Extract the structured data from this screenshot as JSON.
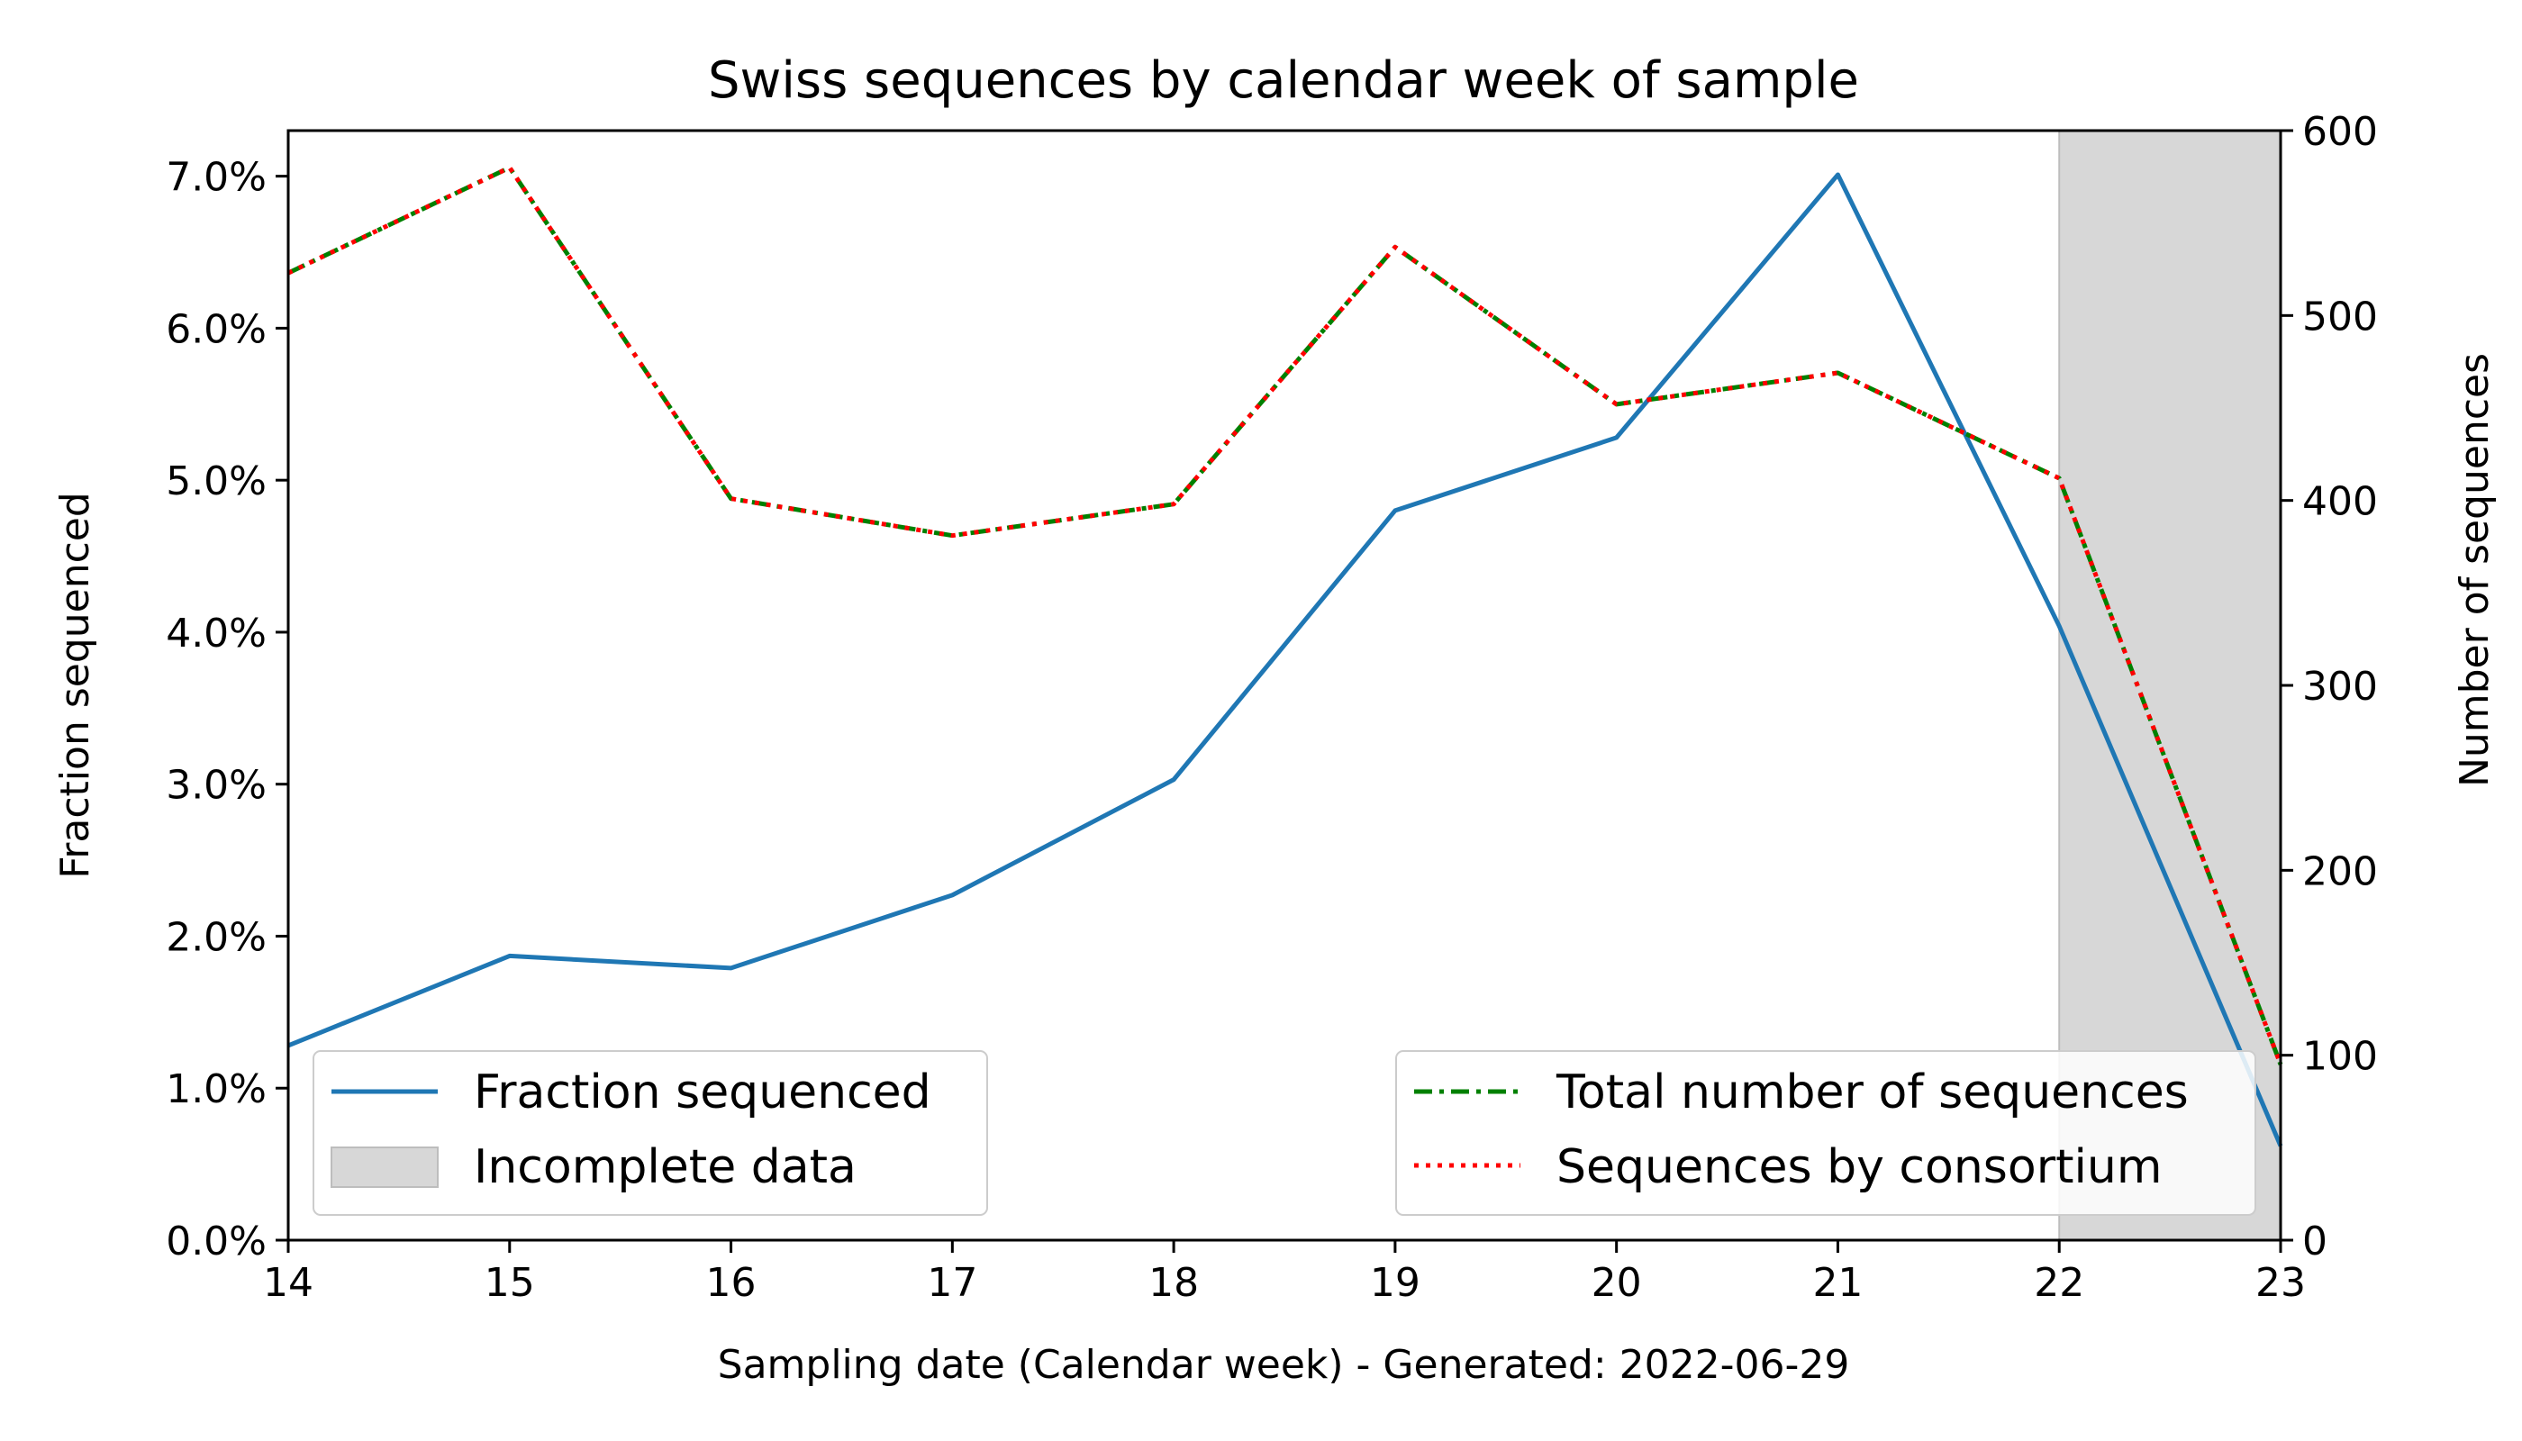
{
  "chart_data": {
    "type": "line",
    "title": "Swiss sequences by calendar week of sample",
    "xlabel": "Sampling date (Calendar week) - Generated: 2022-06-29",
    "ylabel_left": "Fraction sequenced",
    "ylabel_right": "Number of sequences",
    "x": [
      14,
      15,
      16,
      17,
      18,
      19,
      20,
      21,
      22,
      23
    ],
    "xlim": [
      14,
      23
    ],
    "xticks": [
      "14",
      "15",
      "16",
      "17",
      "18",
      "19",
      "20",
      "21",
      "22",
      "23"
    ],
    "ylim_left": [
      0,
      0.073
    ],
    "yticks_left": [
      "0.0%",
      "1.0%",
      "2.0%",
      "3.0%",
      "4.0%",
      "5.0%",
      "6.0%",
      "7.0%"
    ],
    "ylim_right": [
      0,
      600
    ],
    "yticks_right": [
      "0",
      "100",
      "200",
      "300",
      "400",
      "500",
      "600"
    ],
    "incomplete_region": {
      "x0": 22,
      "x1": 23,
      "color": "#d7d7d7"
    },
    "series": [
      {
        "name": "Fraction sequenced",
        "axis": "left",
        "color": "#1f77b4",
        "style": "solid",
        "values": [
          0.0128,
          0.0187,
          0.0179,
          0.0227,
          0.0303,
          0.048,
          0.0528,
          0.0701,
          0.0404,
          0.0062
        ]
      },
      {
        "name": "Total number of sequences",
        "axis": "right",
        "color": "#008000",
        "style": "dashdot",
        "values": [
          523,
          580,
          401,
          381,
          398,
          537,
          452,
          469,
          412,
          95
        ]
      },
      {
        "name": "Sequences by consortium",
        "axis": "right",
        "color": "#ff0000",
        "style": "dotted",
        "values": [
          523,
          580,
          401,
          381,
          398,
          537,
          452,
          469,
          412,
          95
        ]
      }
    ],
    "legend_left": [
      "Fraction sequenced",
      "Incomplete data"
    ],
    "legend_right": [
      "Total number of sequences",
      "Sequences by consortium"
    ],
    "legend_placement": [
      "lower-left",
      "lower-right"
    ],
    "grid": false
  }
}
